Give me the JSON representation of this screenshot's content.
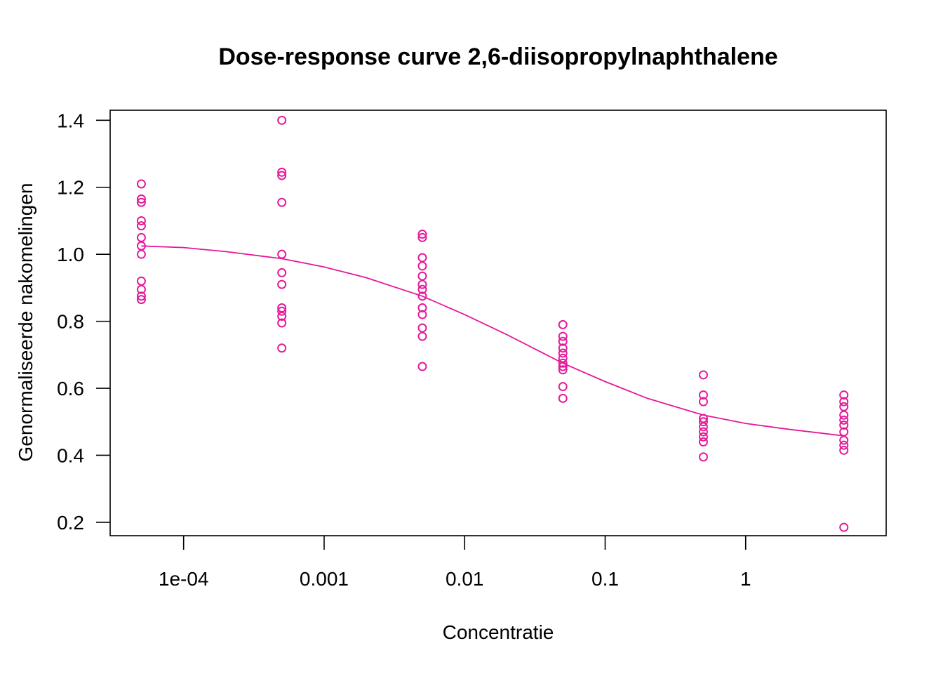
{
  "chart_data": {
    "type": "scatter",
    "title": "Dose-response curve 2,6-diisopropylnaphthalene",
    "xlabel": "Concentratie",
    "ylabel": "Genormaliseerde nakomelingen",
    "x_scale": "log",
    "xlim": [
      3e-05,
      10
    ],
    "ylim": [
      0.16,
      1.43
    ],
    "x_ticks": [
      {
        "value": 0.0001,
        "label": "1e-04"
      },
      {
        "value": 0.001,
        "label": "0.001"
      },
      {
        "value": 0.01,
        "label": "0.01"
      },
      {
        "value": 0.1,
        "label": "0.1"
      },
      {
        "value": 1,
        "label": "1"
      }
    ],
    "y_ticks": [
      {
        "value": 0.2,
        "label": "0.2"
      },
      {
        "value": 0.4,
        "label": "0.4"
      },
      {
        "value": 0.6,
        "label": "0.6"
      },
      {
        "value": 0.8,
        "label": "0.8"
      },
      {
        "value": 1.0,
        "label": "1.0"
      },
      {
        "value": 1.2,
        "label": "1.2"
      },
      {
        "value": 1.4,
        "label": "1.4"
      }
    ],
    "grid": false,
    "color": "#e6199a",
    "points": [
      {
        "x": 5e-05,
        "y": 1.21
      },
      {
        "x": 5e-05,
        "y": 1.165
      },
      {
        "x": 5e-05,
        "y": 1.155
      },
      {
        "x": 5e-05,
        "y": 1.1
      },
      {
        "x": 5e-05,
        "y": 1.085
      },
      {
        "x": 5e-05,
        "y": 1.05
      },
      {
        "x": 5e-05,
        "y": 1.025
      },
      {
        "x": 5e-05,
        "y": 1.0
      },
      {
        "x": 5e-05,
        "y": 0.92
      },
      {
        "x": 5e-05,
        "y": 0.895
      },
      {
        "x": 5e-05,
        "y": 0.875
      },
      {
        "x": 5e-05,
        "y": 0.865
      },
      {
        "x": 0.0005,
        "y": 1.4
      },
      {
        "x": 0.0005,
        "y": 1.245
      },
      {
        "x": 0.0005,
        "y": 1.235
      },
      {
        "x": 0.0005,
        "y": 1.155
      },
      {
        "x": 0.0005,
        "y": 1.0
      },
      {
        "x": 0.0005,
        "y": 0.945
      },
      {
        "x": 0.0005,
        "y": 0.91
      },
      {
        "x": 0.0005,
        "y": 0.84
      },
      {
        "x": 0.0005,
        "y": 0.83
      },
      {
        "x": 0.0005,
        "y": 0.815
      },
      {
        "x": 0.0005,
        "y": 0.795
      },
      {
        "x": 0.0005,
        "y": 0.72
      },
      {
        "x": 0.005,
        "y": 1.06
      },
      {
        "x": 0.005,
        "y": 1.05
      },
      {
        "x": 0.005,
        "y": 0.99
      },
      {
        "x": 0.005,
        "y": 0.965
      },
      {
        "x": 0.005,
        "y": 0.935
      },
      {
        "x": 0.005,
        "y": 0.91
      },
      {
        "x": 0.005,
        "y": 0.895
      },
      {
        "x": 0.005,
        "y": 0.875
      },
      {
        "x": 0.005,
        "y": 0.84
      },
      {
        "x": 0.005,
        "y": 0.82
      },
      {
        "x": 0.005,
        "y": 0.78
      },
      {
        "x": 0.005,
        "y": 0.755
      },
      {
        "x": 0.005,
        "y": 0.665
      },
      {
        "x": 0.05,
        "y": 0.79
      },
      {
        "x": 0.05,
        "y": 0.755
      },
      {
        "x": 0.05,
        "y": 0.74
      },
      {
        "x": 0.05,
        "y": 0.72
      },
      {
        "x": 0.05,
        "y": 0.705
      },
      {
        "x": 0.05,
        "y": 0.69
      },
      {
        "x": 0.05,
        "y": 0.675
      },
      {
        "x": 0.05,
        "y": 0.665
      },
      {
        "x": 0.05,
        "y": 0.655
      },
      {
        "x": 0.05,
        "y": 0.605
      },
      {
        "x": 0.05,
        "y": 0.57
      },
      {
        "x": 0.5,
        "y": 0.64
      },
      {
        "x": 0.5,
        "y": 0.58
      },
      {
        "x": 0.5,
        "y": 0.56
      },
      {
        "x": 0.5,
        "y": 0.51
      },
      {
        "x": 0.5,
        "y": 0.5
      },
      {
        "x": 0.5,
        "y": 0.485
      },
      {
        "x": 0.5,
        "y": 0.47
      },
      {
        "x": 0.5,
        "y": 0.455
      },
      {
        "x": 0.5,
        "y": 0.44
      },
      {
        "x": 0.5,
        "y": 0.395
      },
      {
        "x": 5,
        "y": 0.58
      },
      {
        "x": 5,
        "y": 0.56
      },
      {
        "x": 5,
        "y": 0.545
      },
      {
        "x": 5,
        "y": 0.52
      },
      {
        "x": 5,
        "y": 0.505
      },
      {
        "x": 5,
        "y": 0.49
      },
      {
        "x": 5,
        "y": 0.47
      },
      {
        "x": 5,
        "y": 0.445
      },
      {
        "x": 5,
        "y": 0.43
      },
      {
        "x": 5,
        "y": 0.415
      },
      {
        "x": 5,
        "y": 0.185
      }
    ],
    "fit_curve": {
      "x": [
        5e-05,
        0.0001,
        0.0002,
        0.0005,
        0.001,
        0.002,
        0.005,
        0.01,
        0.02,
        0.05,
        0.1,
        0.2,
        0.5,
        1,
        2,
        5
      ],
      "y": [
        1.025,
        1.02,
        1.008,
        0.987,
        0.962,
        0.93,
        0.875,
        0.82,
        0.76,
        0.675,
        0.62,
        0.57,
        0.52,
        0.495,
        0.478,
        0.458
      ]
    }
  }
}
